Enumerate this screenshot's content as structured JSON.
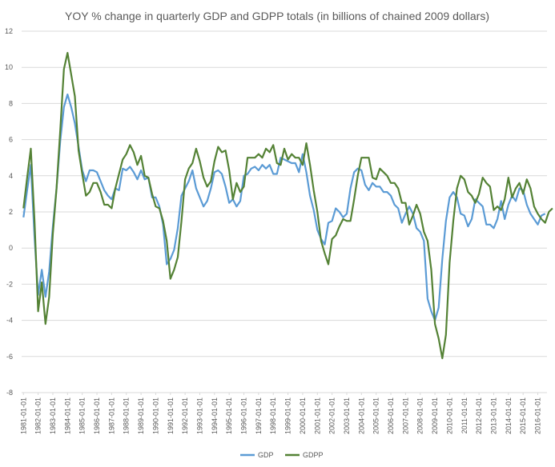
{
  "chart_data": {
    "type": "line",
    "title": "YOY % change in quarterly GDP and GDPP totals (in billions of chained 2009 dollars)",
    "ylim": [
      -8,
      12
    ],
    "y_ticks": [
      -8,
      -6,
      -4,
      -2,
      0,
      2,
      4,
      6,
      8,
      10,
      12
    ],
    "x_tick_labels": [
      "1981-01-01",
      "1982-01-01",
      "1983-01-01",
      "1984-01-01",
      "1985-01-01",
      "1986-01-01",
      "1987-01-01",
      "1988-01-01",
      "1989-01-01",
      "1990-01-01",
      "1991-01-01",
      "1992-01-01",
      "1993-01-01",
      "1994-01-01",
      "1995-01-01",
      "1996-01-01",
      "1997-01-01",
      "1998-01-01",
      "1999-01-01",
      "2000-01-01",
      "2001-01-01",
      "2002-01-01",
      "2003-01-01",
      "2004-01-01",
      "2005-01-01",
      "2006-01-01",
      "2007-01-01",
      "2008-01-01",
      "2009-01-01",
      "2010-01-01",
      "2011-01-01",
      "2012-01-01",
      "2013-01-01",
      "2014-01-01",
      "2015-01-01",
      "2016-01-01"
    ],
    "x_start": "1981-01-01",
    "x_frequency": "quarterly",
    "grid": true,
    "legend_position": "bottom",
    "series": [
      {
        "name": "GDP",
        "color": "#5b9bd5",
        "values": [
          1.7,
          3.2,
          4.6,
          0.6,
          -2.6,
          -1.2,
          -2.7,
          -1.3,
          1.2,
          3.3,
          5.9,
          7.8,
          8.5,
          7.8,
          6.9,
          5.6,
          4.3,
          3.7,
          4.3,
          4.3,
          4.2,
          3.7,
          3.2,
          2.9,
          2.7,
          3.3,
          3.2,
          4.4,
          4.3,
          4.5,
          4.2,
          3.8,
          4.3,
          3.8,
          3.9,
          2.8,
          2.8,
          2.3,
          1.3,
          -0.9,
          -0.6,
          -0.1,
          1.1,
          2.9,
          3.3,
          3.7,
          4.3,
          3.3,
          2.8,
          2.3,
          2.6,
          3.3,
          4.2,
          4.3,
          4.1,
          3.4,
          2.5,
          2.7,
          2.3,
          2.6,
          4.0,
          4.1,
          4.4,
          4.5,
          4.3,
          4.6,
          4.4,
          4.6,
          4.1,
          4.1,
          5.0,
          4.9,
          4.8,
          4.7,
          4.7,
          4.2,
          5.2,
          4.2,
          2.9,
          2.1,
          1.0,
          0.5,
          0.2,
          1.4,
          1.5,
          2.2,
          2.0,
          1.7,
          1.9,
          3.3,
          4.2,
          4.4,
          4.3,
          3.5,
          3.2,
          3.6,
          3.4,
          3.4,
          3.1,
          3.1,
          2.9,
          2.4,
          2.2,
          1.4,
          1.9,
          2.3,
          1.9,
          1.1,
          0.9,
          0.4,
          -2.8,
          -3.5,
          -4.0,
          -3.3,
          -0.6,
          1.5,
          2.8,
          3.1,
          2.8,
          1.9,
          1.8,
          1.2,
          1.6,
          2.7,
          2.5,
          2.3,
          1.3,
          1.3,
          1.1,
          1.6,
          2.6,
          1.6,
          2.4,
          2.9,
          2.6,
          3.3,
          3.2,
          2.4,
          1.9,
          1.6,
          1.3,
          1.8,
          1.9
        ]
      },
      {
        "name": "GDPP",
        "color": "#548235",
        "values": [
          2.2,
          3.9,
          5.5,
          1.5,
          -3.5,
          -1.9,
          -4.2,
          -2.7,
          0.8,
          3.3,
          6.5,
          9.9,
          10.8,
          9.6,
          8.4,
          5.4,
          4.1,
          2.9,
          3.1,
          3.6,
          3.6,
          3.1,
          2.4,
          2.4,
          2.2,
          3.3,
          4.1,
          4.9,
          5.2,
          5.7,
          5.3,
          4.6,
          5.1,
          4.0,
          3.9,
          3.0,
          2.3,
          2.2,
          1.5,
          0.4,
          -1.7,
          -1.2,
          -0.5,
          1.5,
          3.8,
          4.4,
          4.7,
          5.5,
          4.8,
          3.9,
          3.4,
          3.7,
          4.8,
          5.6,
          5.3,
          5.4,
          4.3,
          2.7,
          3.6,
          3.1,
          3.4,
          5.0,
          5.0,
          5.0,
          5.2,
          5.0,
          5.5,
          5.3,
          5.7,
          4.7,
          4.6,
          5.5,
          4.9,
          5.2,
          5.0,
          5.0,
          4.6,
          5.8,
          4.6,
          3.2,
          2.0,
          0.4,
          -0.3,
          -0.9,
          0.5,
          0.7,
          1.2,
          1.6,
          1.5,
          1.5,
          2.7,
          4.0,
          5.0,
          5.0,
          5.0,
          3.9,
          3.8,
          4.4,
          4.2,
          4.0,
          3.6,
          3.6,
          3.3,
          2.5,
          2.5,
          1.3,
          1.8,
          2.4,
          1.9,
          0.9,
          0.4,
          -1.2,
          -4.2,
          -5.0,
          -6.1,
          -4.8,
          -0.8,
          1.5,
          3.3,
          4.0,
          3.8,
          3.1,
          2.9,
          2.5,
          3.0,
          3.9,
          3.6,
          3.4,
          2.1,
          2.3,
          2.1,
          2.7,
          3.9,
          2.8,
          3.3,
          3.6,
          3.0,
          3.8,
          3.3,
          2.3,
          1.9,
          1.6,
          1.4,
          2.0,
          2.2
        ]
      }
    ]
  }
}
